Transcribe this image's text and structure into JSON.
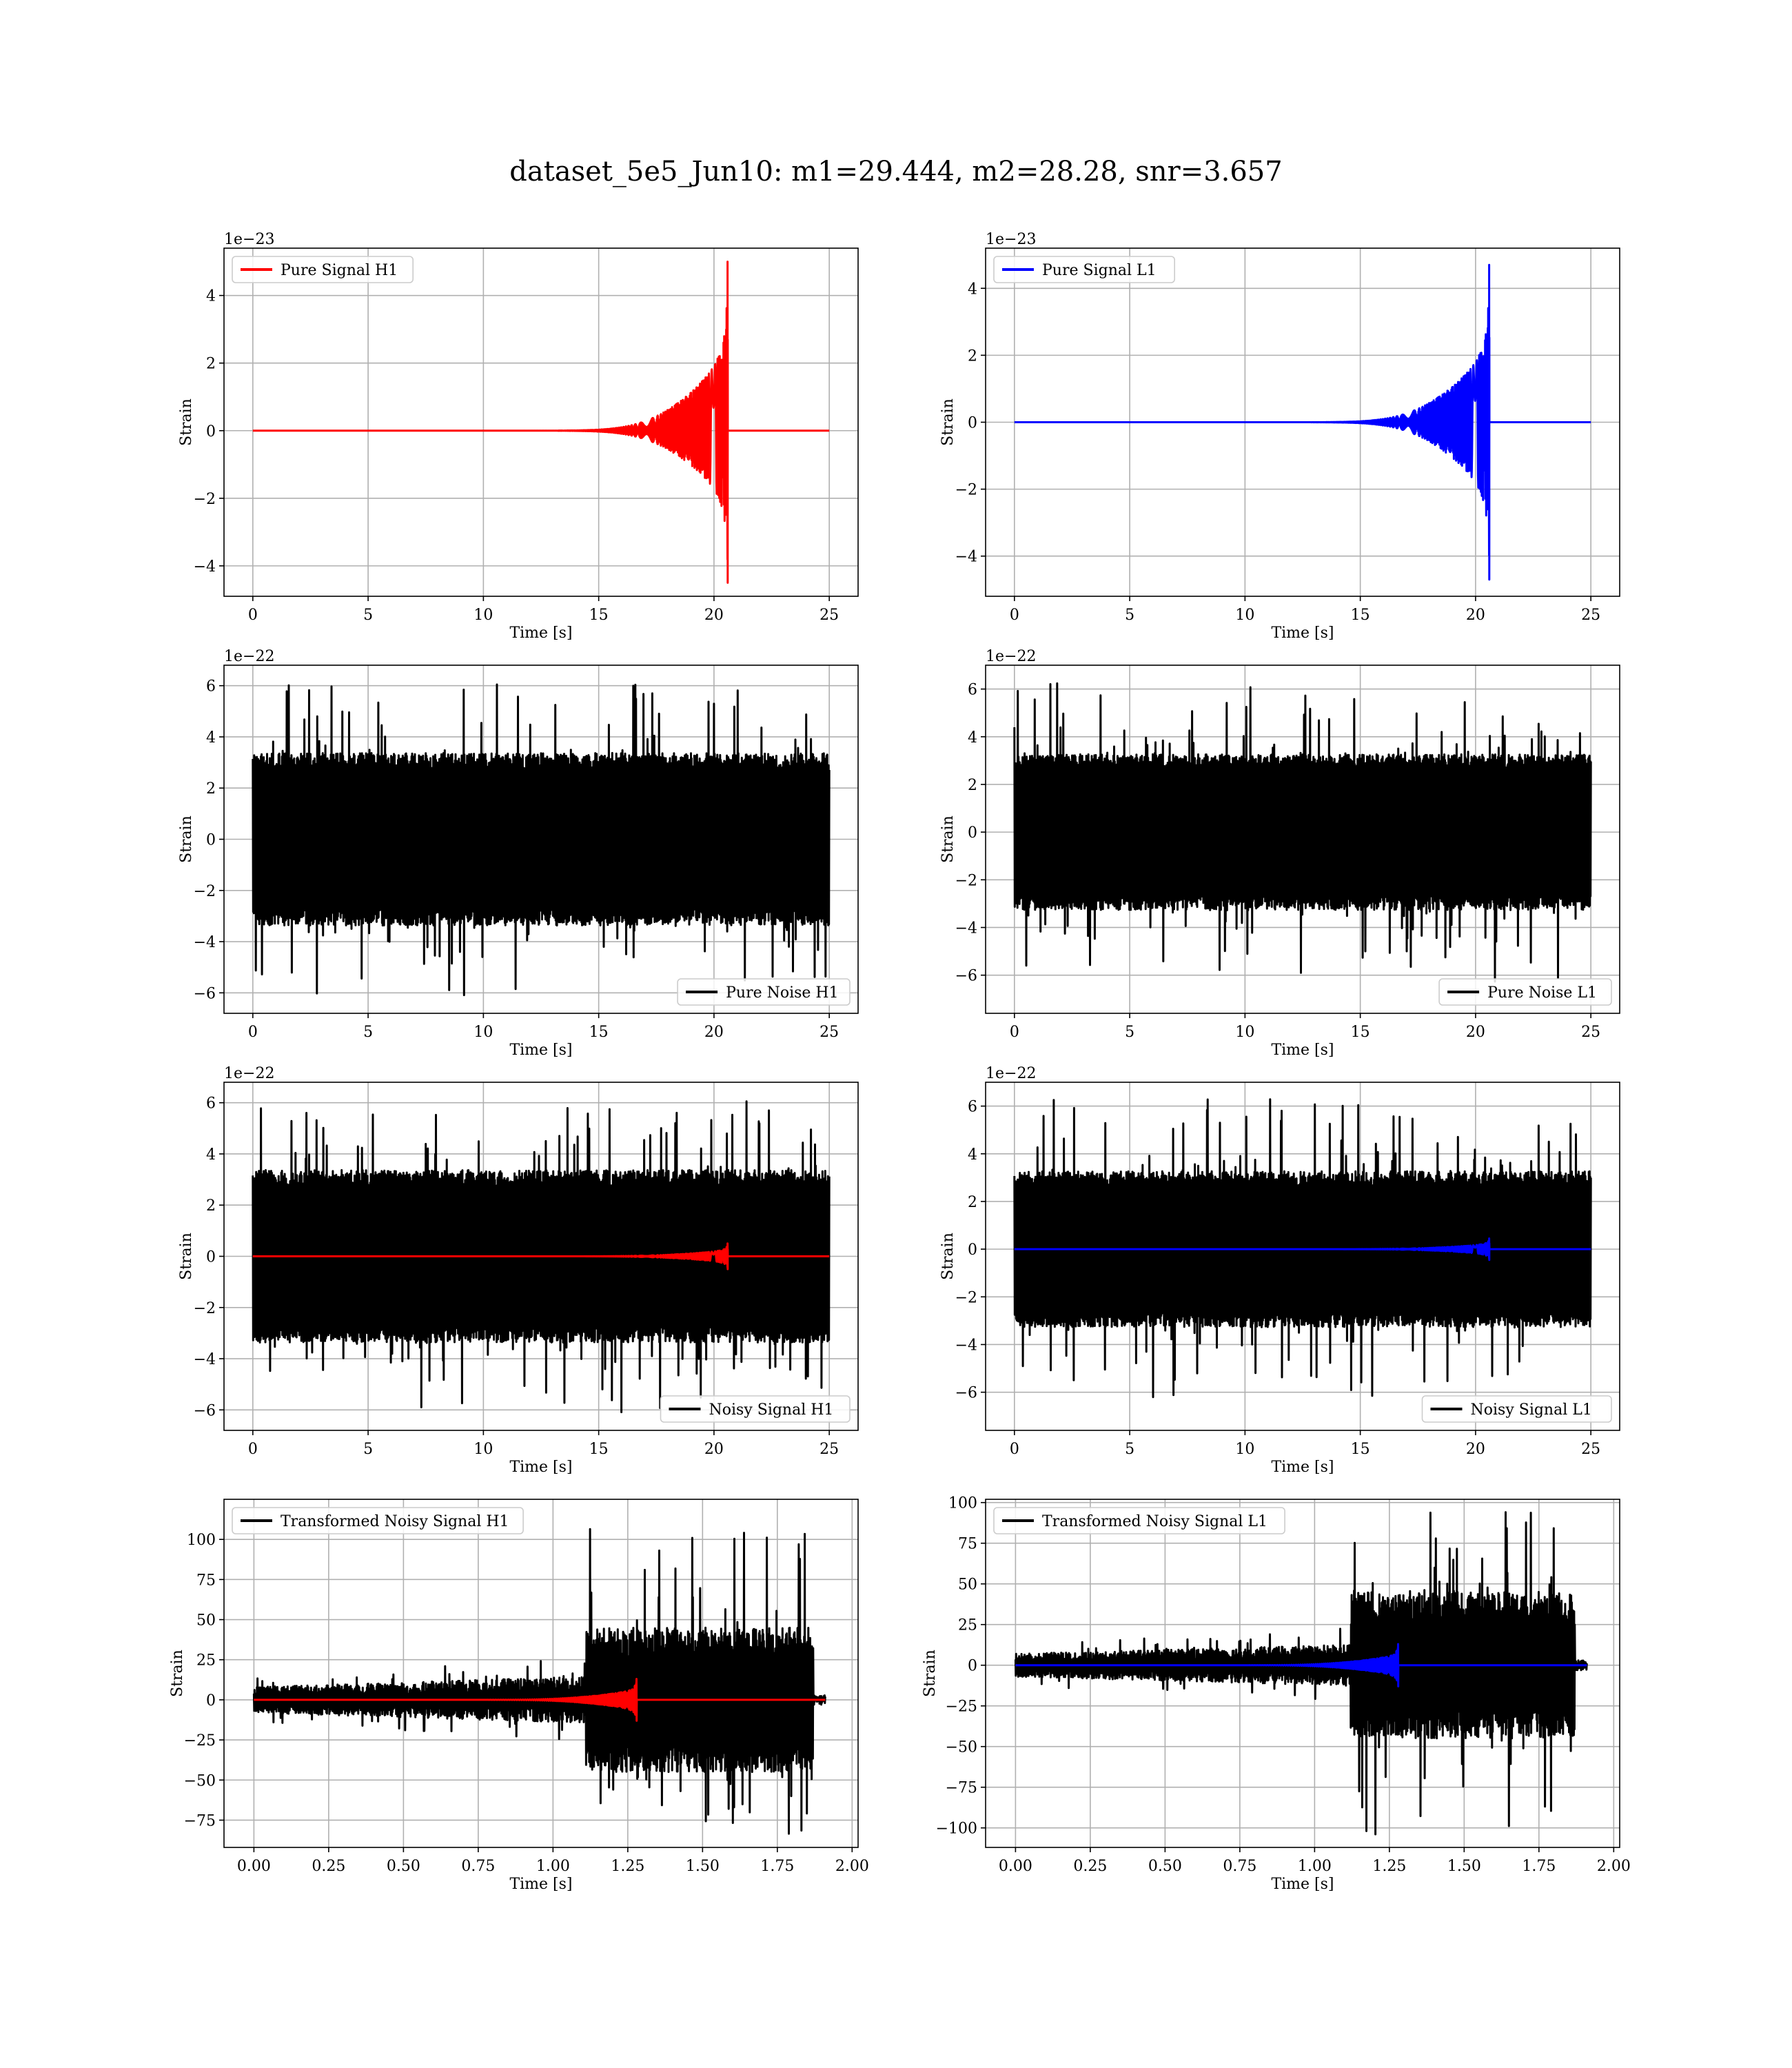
{
  "suptitle": "dataset_5e5_Jun10: m1=29.444, m2=28.28, snr=3.657",
  "chart_data": [
    {
      "id": "p1",
      "type": "line",
      "xlabel": "Time [s]",
      "ylabel": "Strain",
      "offset_text": "1e−23",
      "xlim": [
        -1.25,
        26.25
      ],
      "ylim": [
        -4.9,
        5.4
      ],
      "xticks": [
        0,
        5,
        10,
        15,
        20,
        25
      ],
      "xtick_labels": [
        "0",
        "5",
        "10",
        "15",
        "20",
        "25"
      ],
      "yticks": [
        -4,
        -2,
        0,
        2,
        4
      ],
      "ytick_labels": [
        "−4",
        "−2",
        "0",
        "2",
        "4"
      ],
      "grid": true,
      "legend_loc": "upper left",
      "series": [
        {
          "name": "Pure Signal H1",
          "color": "#ff0000",
          "kind": "chirp",
          "tmin": 0,
          "tmax": 25,
          "tc": 20.6,
          "amp": 5.0,
          "amp_neg": 4.5
        }
      ]
    },
    {
      "id": "p2",
      "type": "line",
      "xlabel": "Time [s]",
      "ylabel": "Strain",
      "offset_text": "1e−23",
      "xlim": [
        -1.25,
        26.25
      ],
      "ylim": [
        -5.2,
        5.2
      ],
      "xticks": [
        0,
        5,
        10,
        15,
        20,
        25
      ],
      "xtick_labels": [
        "0",
        "5",
        "10",
        "15",
        "20",
        "25"
      ],
      "yticks": [
        -4,
        -2,
        0,
        2,
        4
      ],
      "ytick_labels": [
        "−4",
        "−2",
        "0",
        "2",
        "4"
      ],
      "grid": true,
      "legend_loc": "upper left",
      "series": [
        {
          "name": "Pure Signal L1",
          "color": "#0000ff",
          "kind": "chirp",
          "tmin": 0,
          "tmax": 25,
          "tc": 20.6,
          "amp": 4.7,
          "amp_neg": 4.7
        }
      ]
    },
    {
      "id": "p3",
      "type": "line",
      "xlabel": "Time [s]",
      "ylabel": "Strain",
      "offset_text": "1e−22",
      "xlim": [
        -1.25,
        26.25
      ],
      "ylim": [
        -6.8,
        6.8
      ],
      "xticks": [
        0,
        5,
        10,
        15,
        20,
        25
      ],
      "xtick_labels": [
        "0",
        "5",
        "10",
        "15",
        "20",
        "25"
      ],
      "yticks": [
        -6,
        -4,
        -2,
        0,
        2,
        4,
        6
      ],
      "ytick_labels": [
        "−6",
        "−4",
        "−2",
        "0",
        "2",
        "4",
        "6"
      ],
      "grid": true,
      "legend_loc": "lower right",
      "series": [
        {
          "name": "Pure Noise H1",
          "color": "#000000",
          "kind": "noise",
          "tmin": 0,
          "tmax": 25,
          "core": 3.3,
          "peak": 6.1
        }
      ]
    },
    {
      "id": "p4",
      "type": "line",
      "xlabel": "Time [s]",
      "ylabel": "Strain",
      "offset_text": "1e−22",
      "xlim": [
        -1.25,
        26.25
      ],
      "ylim": [
        -7.6,
        7.0
      ],
      "xticks": [
        0,
        5,
        10,
        15,
        20,
        25
      ],
      "xtick_labels": [
        "0",
        "5",
        "10",
        "15",
        "20",
        "25"
      ],
      "yticks": [
        -6,
        -4,
        -2,
        0,
        2,
        4,
        6
      ],
      "ytick_labels": [
        "−6",
        "−4",
        "−2",
        "0",
        "2",
        "4",
        "6"
      ],
      "grid": true,
      "legend_loc": "lower right",
      "series": [
        {
          "name": "Pure Noise L1",
          "color": "#000000",
          "kind": "noise",
          "tmin": 0,
          "tmax": 25,
          "core": 3.2,
          "peak": 6.3
        }
      ]
    },
    {
      "id": "p5",
      "type": "line",
      "xlabel": "Time [s]",
      "ylabel": "Strain",
      "offset_text": "1e−22",
      "xlim": [
        -1.25,
        26.25
      ],
      "ylim": [
        -6.8,
        6.8
      ],
      "xticks": [
        0,
        5,
        10,
        15,
        20,
        25
      ],
      "xtick_labels": [
        "0",
        "5",
        "10",
        "15",
        "20",
        "25"
      ],
      "yticks": [
        -6,
        -4,
        -2,
        0,
        2,
        4,
        6
      ],
      "ytick_labels": [
        "−6",
        "−4",
        "−2",
        "0",
        "2",
        "4",
        "6"
      ],
      "grid": true,
      "legend_loc": "lower right",
      "series": [
        {
          "name": "Noisy Signal H1",
          "color": "#000000",
          "kind": "noise",
          "tmin": 0,
          "tmax": 25,
          "core": 3.3,
          "peak": 6.1
        },
        {
          "name": "",
          "color": "#ff0000",
          "kind": "chirp",
          "tmin": 0,
          "tmax": 25,
          "tc": 20.6,
          "amp": 0.5,
          "amp_neg": 0.5
        }
      ]
    },
    {
      "id": "p6",
      "type": "line",
      "xlabel": "Time [s]",
      "ylabel": "Strain",
      "offset_text": "1e−22",
      "xlim": [
        -1.25,
        26.25
      ],
      "ylim": [
        -7.6,
        7.0
      ],
      "xticks": [
        0,
        5,
        10,
        15,
        20,
        25
      ],
      "xtick_labels": [
        "0",
        "5",
        "10",
        "15",
        "20",
        "25"
      ],
      "yticks": [
        -6,
        -4,
        -2,
        0,
        2,
        4,
        6
      ],
      "ytick_labels": [
        "−6",
        "−4",
        "−2",
        "0",
        "2",
        "4",
        "6"
      ],
      "grid": true,
      "legend_loc": "lower right",
      "series": [
        {
          "name": "Noisy Signal L1",
          "color": "#000000",
          "kind": "noise",
          "tmin": 0,
          "tmax": 25,
          "core": 3.2,
          "peak": 6.3
        },
        {
          "name": "",
          "color": "#0000ff",
          "kind": "chirp",
          "tmin": 0,
          "tmax": 25,
          "tc": 20.6,
          "amp": 0.45,
          "amp_neg": 0.45
        }
      ]
    },
    {
      "id": "p7",
      "type": "line",
      "xlabel": "Time [s]",
      "ylabel": "Strain",
      "offset_text": "",
      "xlim": [
        -0.1,
        2.02
      ],
      "ylim": [
        -92,
        125
      ],
      "xticks": [
        0,
        0.25,
        0.5,
        0.75,
        1.0,
        1.25,
        1.5,
        1.75,
        2.0
      ],
      "xtick_labels": [
        "0.00",
        "0.25",
        "0.50",
        "0.75",
        "1.00",
        "1.25",
        "1.50",
        "1.75",
        "2.00"
      ],
      "yticks": [
        -75,
        -50,
        -25,
        0,
        25,
        50,
        75,
        100
      ],
      "ytick_labels": [
        "−75",
        "−50",
        "−25",
        "0",
        "25",
        "50",
        "75",
        "100"
      ],
      "grid": true,
      "legend_loc": "upper left",
      "series": [
        {
          "name": "Transformed Noisy Signal H1",
          "color": "#000000",
          "kind": "transformed",
          "tmin": 0,
          "tmax": 1.91,
          "t_jump": 1.11,
          "t_end": 1.87,
          "pre_amp": 8,
          "post_amp": 45,
          "peak_pos": 115,
          "peak_neg": 85
        },
        {
          "name": "",
          "color": "#ff0000",
          "kind": "chirp",
          "tmin": 0,
          "tmax": 1.91,
          "tc": 1.28,
          "amp": 13,
          "amp_neg": 13
        }
      ]
    },
    {
      "id": "p8",
      "type": "line",
      "xlabel": "Time [s]",
      "ylabel": "Strain",
      "offset_text": "",
      "xlim": [
        -0.1,
        2.02
      ],
      "ylim": [
        -112,
        102
      ],
      "xticks": [
        0,
        0.25,
        0.5,
        0.75,
        1.0,
        1.25,
        1.5,
        1.75,
        2.0
      ],
      "xtick_labels": [
        "0.00",
        "0.25",
        "0.50",
        "0.75",
        "1.00",
        "1.25",
        "1.50",
        "1.75",
        "2.00"
      ],
      "yticks": [
        -100,
        -75,
        -50,
        -25,
        0,
        25,
        50,
        75,
        100
      ],
      "ytick_labels": [
        "−100",
        "−75",
        "−50",
        "−25",
        "0",
        "25",
        "50",
        "75",
        "100"
      ],
      "grid": true,
      "legend_loc": "upper left",
      "series": [
        {
          "name": "Transformed Noisy Signal L1",
          "color": "#000000",
          "kind": "transformed",
          "tmin": 0,
          "tmax": 1.91,
          "t_jump": 1.12,
          "t_end": 1.87,
          "pre_amp": 7,
          "post_amp": 45,
          "peak_pos": 95,
          "peak_neg": 105
        },
        {
          "name": "",
          "color": "#0000ff",
          "kind": "chirp",
          "tmin": 0,
          "tmax": 1.91,
          "tc": 1.28,
          "amp": 13,
          "amp_neg": 13
        }
      ]
    }
  ]
}
